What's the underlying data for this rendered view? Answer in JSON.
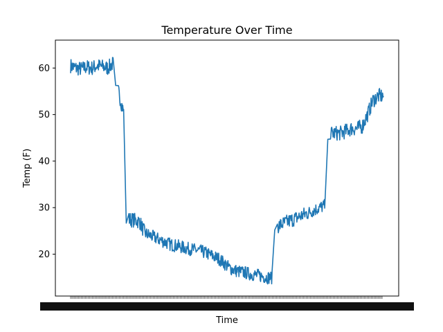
{
  "chart_data": {
    "type": "line",
    "title": "Temperature Over Time",
    "xlabel": "Time",
    "ylabel": "Temp (F)",
    "ylim": [
      11.0,
      66.0
    ],
    "yticks": [
      20,
      30,
      40,
      50,
      60
    ],
    "grid": false,
    "x_tick_labels_note": "dense, overlapping, illegible",
    "series": [
      {
        "color": "#1f77b4",
        "x": [
          0,
          2,
          4,
          6,
          8,
          10,
          12,
          14,
          16,
          18,
          20,
          22,
          24,
          26,
          28,
          30,
          32,
          34,
          36,
          38,
          40,
          42,
          44,
          46,
          48,
          50,
          52,
          54,
          56,
          58,
          60,
          62,
          64,
          66,
          68,
          70,
          72,
          74,
          76,
          78,
          80,
          82,
          84,
          86,
          88,
          90,
          92,
          94,
          96,
          98,
          100
        ],
        "y": [
          60.5,
          60.0,
          59.8,
          60.2,
          60.0,
          60.5,
          60.3,
          60.0,
          61.0,
          55.0,
          50.5,
          27.5,
          27.3,
          27.0,
          24.5,
          24.0,
          23.5,
          23.0,
          22.5,
          22.0,
          21.8,
          21.5,
          21.2,
          21.0,
          20.8,
          20.5,
          20.0,
          19.5,
          19.0,
          18.0,
          17.0,
          16.5,
          16.2,
          16.0,
          15.7,
          15.5,
          15.3,
          15.0,
          15.0,
          26.0,
          26.5,
          27.0,
          27.5,
          28.0,
          28.5,
          29.0,
          29.5,
          30.0,
          30.5,
          46.0,
          46.0
        ]
      }
    ],
    "series_tail": {
      "x": [
        100,
        102,
        104,
        106,
        108,
        110,
        112,
        114,
        116,
        118
      ],
      "y": [
        46.0,
        46.0,
        46.5,
        47.0,
        47.0,
        47.5,
        50.0,
        53.0,
        54.0,
        54.0
      ]
    }
  }
}
